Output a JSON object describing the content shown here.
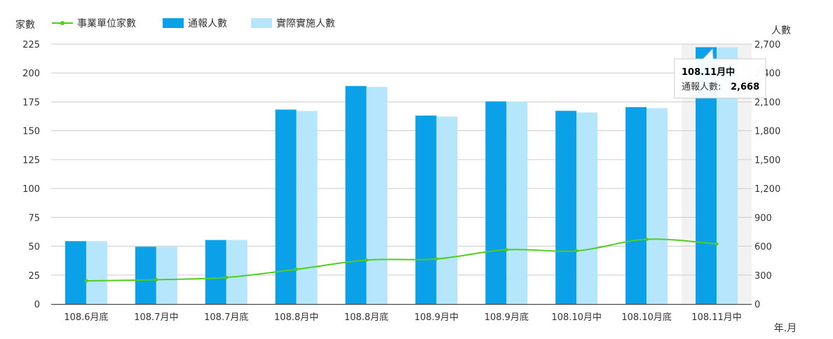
{
  "chart_data": {
    "type": "bar",
    "categories": [
      "108.6月底",
      "108.7月中",
      "108.7月底",
      "108.8月中",
      "108.8月底",
      "108.9月中",
      "108.9月底",
      "108.10月中",
      "108.10月底",
      "108.11月中"
    ],
    "series": [
      {
        "name": "事業單位家數",
        "type": "line",
        "axis": "left",
        "color": "#52cc1e",
        "values": [
          20,
          21,
          23,
          30,
          38,
          39,
          47,
          46,
          56,
          52
        ]
      },
      {
        "name": "通報人數",
        "type": "bar",
        "axis": "right",
        "color": "#0aa1e8",
        "values": [
          653,
          595,
          665,
          2020,
          2265,
          1958,
          2105,
          2007,
          2045,
          2668
        ]
      },
      {
        "name": "實際實施人數",
        "type": "bar",
        "axis": "right",
        "color": "#b6e6fb",
        "values": [
          653,
          595,
          665,
          2005,
          2255,
          1948,
          2105,
          1990,
          2035,
          2668
        ]
      }
    ],
    "left_axis": {
      "label": "家數",
      "range": [
        0,
        225
      ],
      "ticks": [
        "0",
        "25",
        "50",
        "75",
        "100",
        "125",
        "150",
        "175",
        "200",
        "225"
      ]
    },
    "right_axis": {
      "label": "人數",
      "range": [
        0,
        2700
      ],
      "ticks": [
        "0",
        "300",
        "600",
        "900",
        "1,200",
        "1,500",
        "1,800",
        "2,100",
        "2,400",
        "2,700"
      ]
    },
    "xlabel": "年.月",
    "grid": true,
    "legend_position": "top-left",
    "tooltip": {
      "category_index": 9,
      "title": "108.11月中",
      "series_label": "通報人數:",
      "value": "2,668"
    }
  }
}
